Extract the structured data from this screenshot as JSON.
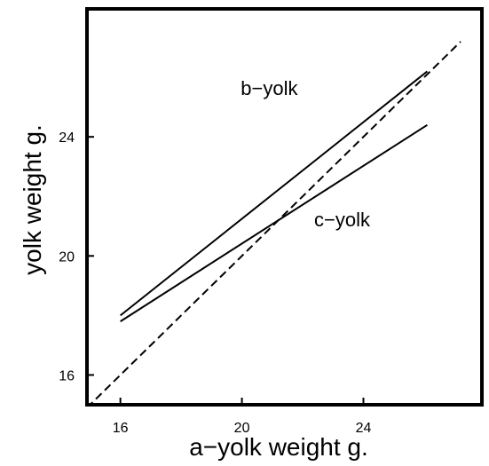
{
  "chart_data": {
    "type": "line",
    "title": "",
    "xlabel": "a−yolk weight  g.",
    "ylabel": "yolk weight  g.",
    "xlim": [
      14.9,
      27.9
    ],
    "ylim": [
      15.0,
      28.3
    ],
    "xticks": [
      16,
      20,
      24
    ],
    "yticks": [
      16,
      20,
      24
    ],
    "x_tick_labels": [
      "16",
      "20",
      "24"
    ],
    "y_tick_labels": [
      "16",
      "20",
      "24"
    ],
    "grid": false,
    "legend": "none",
    "series": [
      {
        "name": "b−yolk",
        "style": "solid",
        "x": [
          16.0,
          26.1
        ],
        "y": [
          18.0,
          26.2
        ]
      },
      {
        "name": "c−yolk",
        "style": "solid",
        "x": [
          16.0,
          26.1
        ],
        "y": [
          17.8,
          24.4
        ]
      },
      {
        "name": "",
        "style": "dashed",
        "x": [
          14.9,
          27.2
        ],
        "y": [
          14.9,
          27.2
        ]
      }
    ],
    "annotations": [
      {
        "text": "b−yolk",
        "x": 20.9,
        "y": 25.4
      },
      {
        "text": "c−yolk",
        "x": 23.3,
        "y": 21.0
      }
    ],
    "colors": {
      "line": "#000000",
      "background": "#ffffff"
    }
  }
}
